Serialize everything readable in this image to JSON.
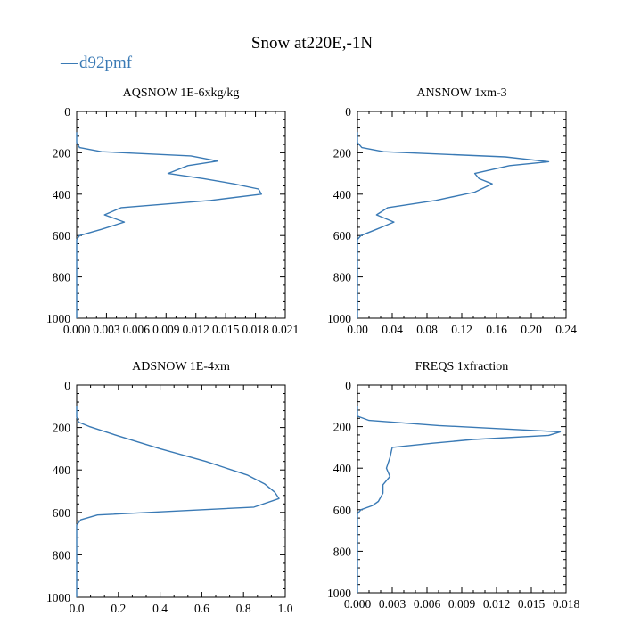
{
  "figure": {
    "title": "Snow at220E,-1N",
    "legend": {
      "label": "d92pmf",
      "color": "#3a7ab5"
    }
  },
  "chart_data": [
    {
      "type": "line",
      "title": "AQSNOW  1E-6xkg/kg",
      "series_name": "d92pmf",
      "xlim": [
        0,
        0.021
      ],
      "ylim": [
        1000,
        0
      ],
      "x_ticks": [
        "0.000",
        "0.003",
        "0.006",
        "0.009",
        "0.012",
        "0.015",
        "0.018",
        "0.021"
      ],
      "y_ticks": [
        "0",
        "200",
        "400",
        "600",
        "800",
        "1000"
      ],
      "x_tick_values": [
        0,
        0.003,
        0.006,
        0.009,
        0.012,
        0.015,
        0.018,
        0.021
      ],
      "y_tick_values": [
        0,
        200,
        400,
        600,
        800,
        1000
      ],
      "points": [
        [
          0,
          100
        ],
        [
          0,
          150
        ],
        [
          0.0003,
          175
        ],
        [
          0.0025,
          195
        ],
        [
          0.0115,
          215
        ],
        [
          0.0142,
          240
        ],
        [
          0.0112,
          262
        ],
        [
          0.0092,
          300
        ],
        [
          0.0128,
          325
        ],
        [
          0.0158,
          350
        ],
        [
          0.0183,
          375
        ],
        [
          0.0186,
          400
        ],
        [
          0.0135,
          430
        ],
        [
          0.0045,
          465
        ],
        [
          0.0028,
          500
        ],
        [
          0.0048,
          535
        ],
        [
          0.0025,
          570
        ],
        [
          0.0003,
          600
        ],
        [
          0,
          620
        ],
        [
          0,
          1000
        ]
      ]
    },
    {
      "type": "line",
      "title": "ANSNOW  1xm-3",
      "series_name": "d92pmf",
      "xlim": [
        0,
        0.24
      ],
      "ylim": [
        1000,
        0
      ],
      "x_ticks": [
        "0.00",
        "0.04",
        "0.08",
        "0.12",
        "0.16",
        "0.20",
        "0.24"
      ],
      "y_ticks": [
        "0",
        "200",
        "400",
        "600",
        "800",
        "1000"
      ],
      "x_tick_values": [
        0,
        0.04,
        0.08,
        0.12,
        0.16,
        0.2,
        0.24
      ],
      "y_tick_values": [
        0,
        200,
        400,
        600,
        800,
        1000
      ],
      "points": [
        [
          0,
          100
        ],
        [
          0,
          150
        ],
        [
          0.005,
          175
        ],
        [
          0.03,
          195
        ],
        [
          0.17,
          220
        ],
        [
          0.22,
          243
        ],
        [
          0.175,
          262
        ],
        [
          0.135,
          300
        ],
        [
          0.14,
          325
        ],
        [
          0.155,
          350
        ],
        [
          0.135,
          390
        ],
        [
          0.09,
          430
        ],
        [
          0.035,
          465
        ],
        [
          0.022,
          500
        ],
        [
          0.042,
          535
        ],
        [
          0.022,
          570
        ],
        [
          0.004,
          600
        ],
        [
          0,
          620
        ],
        [
          0,
          1000
        ]
      ]
    },
    {
      "type": "line",
      "title": "ADSNOW  1E-4xm",
      "series_name": "d92pmf",
      "xlim": [
        0,
        1.0
      ],
      "ylim": [
        1000,
        0
      ],
      "x_ticks": [
        "0.0",
        "0.2",
        "0.4",
        "0.6",
        "0.8",
        "1.0"
      ],
      "y_ticks": [
        "0",
        "200",
        "400",
        "600",
        "800",
        "1000"
      ],
      "x_tick_values": [
        0,
        0.2,
        0.4,
        0.6,
        0.8,
        1.0
      ],
      "y_tick_values": [
        0,
        200,
        400,
        600,
        800,
        1000
      ],
      "points": [
        [
          0,
          100
        ],
        [
          0,
          150
        ],
        [
          0.01,
          175
        ],
        [
          0.06,
          195
        ],
        [
          0.2,
          240
        ],
        [
          0.4,
          300
        ],
        [
          0.62,
          360
        ],
        [
          0.82,
          425
        ],
        [
          0.9,
          465
        ],
        [
          0.95,
          505
        ],
        [
          0.97,
          535
        ],
        [
          0.85,
          575
        ],
        [
          0.1,
          612
        ],
        [
          0.02,
          635
        ],
        [
          0,
          660
        ],
        [
          0,
          1000
        ]
      ]
    },
    {
      "type": "line",
      "title": "FREQS  1xfraction",
      "series_name": "d92pmf",
      "xlim": [
        0,
        0.018
      ],
      "ylim": [
        1000,
        0
      ],
      "x_ticks": [
        "0.000",
        "0.003",
        "0.006",
        "0.009",
        "0.012",
        "0.015",
        "0.018"
      ],
      "y_ticks": [
        "0",
        "200",
        "400",
        "600",
        "800",
        "1000"
      ],
      "x_tick_values": [
        0,
        0.003,
        0.006,
        0.009,
        0.012,
        0.015,
        0.018
      ],
      "y_tick_values": [
        0,
        200,
        400,
        600,
        800,
        1000
      ],
      "points": [
        [
          0,
          100
        ],
        [
          0,
          150
        ],
        [
          0.001,
          170
        ],
        [
          0.007,
          195
        ],
        [
          0.0175,
          225
        ],
        [
          0.0165,
          242
        ],
        [
          0.01,
          262
        ],
        [
          0.0065,
          280
        ],
        [
          0.003,
          300
        ],
        [
          0.0028,
          350
        ],
        [
          0.0025,
          400
        ],
        [
          0.0028,
          440
        ],
        [
          0.0022,
          480
        ],
        [
          0.0022,
          520
        ],
        [
          0.0018,
          560
        ],
        [
          0.0013,
          580
        ],
        [
          0.0003,
          600
        ],
        [
          0,
          620
        ],
        [
          0,
          1000
        ]
      ]
    }
  ]
}
